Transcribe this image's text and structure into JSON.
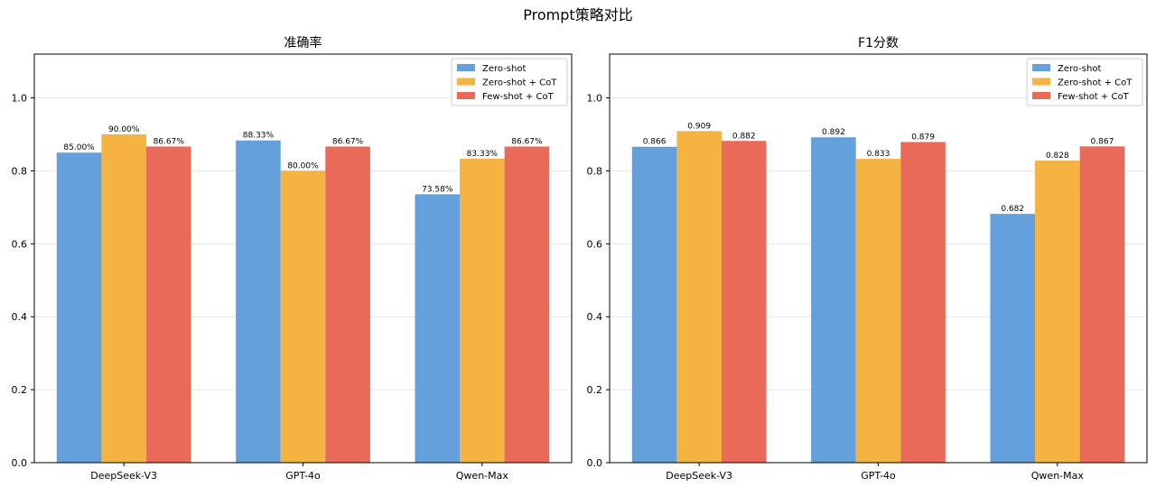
{
  "figure": {
    "title": "Prompt策略对比"
  },
  "colors": {
    "zero_shot": "#64a0dc",
    "zero_shot_cot": "#f5b342",
    "few_shot_cot": "#ea6a5a"
  },
  "chart_data": [
    {
      "type": "bar",
      "title": "准确率",
      "xlabel": "",
      "ylabel": "",
      "ylim": [
        0,
        1.12
      ],
      "yticks": [
        0.0,
        0.2,
        0.4,
        0.6,
        0.8,
        1.0
      ],
      "grid": true,
      "legend": "top-right",
      "label_format": "percent",
      "categories": [
        "DeepSeek-V3",
        "GPT-4o",
        "Qwen-Max"
      ],
      "series": [
        {
          "name": "Zero-shot",
          "color": "#64a0dc",
          "values": [
            0.85,
            0.8833,
            0.7358
          ],
          "labels": [
            "85.00%",
            "88.33%",
            "73.58%"
          ]
        },
        {
          "name": "Zero-shot + CoT",
          "color": "#f5b342",
          "values": [
            0.9,
            0.8,
            0.8333
          ],
          "labels": [
            "90.00%",
            "80.00%",
            "83.33%"
          ]
        },
        {
          "name": "Few-shot + CoT",
          "color": "#ea6a5a",
          "values": [
            0.8667,
            0.8667,
            0.8667
          ],
          "labels": [
            "86.67%",
            "86.67%",
            "86.67%"
          ]
        }
      ]
    },
    {
      "type": "bar",
      "title": "F1分数",
      "xlabel": "",
      "ylabel": "",
      "ylim": [
        0,
        1.12
      ],
      "yticks": [
        0.0,
        0.2,
        0.4,
        0.6,
        0.8,
        1.0
      ],
      "grid": true,
      "legend": "top-right",
      "label_format": "decimal",
      "categories": [
        "DeepSeek-V3",
        "GPT-4o",
        "Qwen-Max"
      ],
      "series": [
        {
          "name": "Zero-shot",
          "color": "#64a0dc",
          "values": [
            0.866,
            0.892,
            0.682
          ],
          "labels": [
            "0.866",
            "0.892",
            "0.682"
          ]
        },
        {
          "name": "Zero-shot + CoT",
          "color": "#f5b342",
          "values": [
            0.909,
            0.833,
            0.828
          ],
          "labels": [
            "0.909",
            "0.833",
            "0.828"
          ]
        },
        {
          "name": "Few-shot + CoT",
          "color": "#ea6a5a",
          "values": [
            0.882,
            0.879,
            0.867
          ],
          "labels": [
            "0.882",
            "0.879",
            "0.867"
          ]
        }
      ]
    }
  ]
}
